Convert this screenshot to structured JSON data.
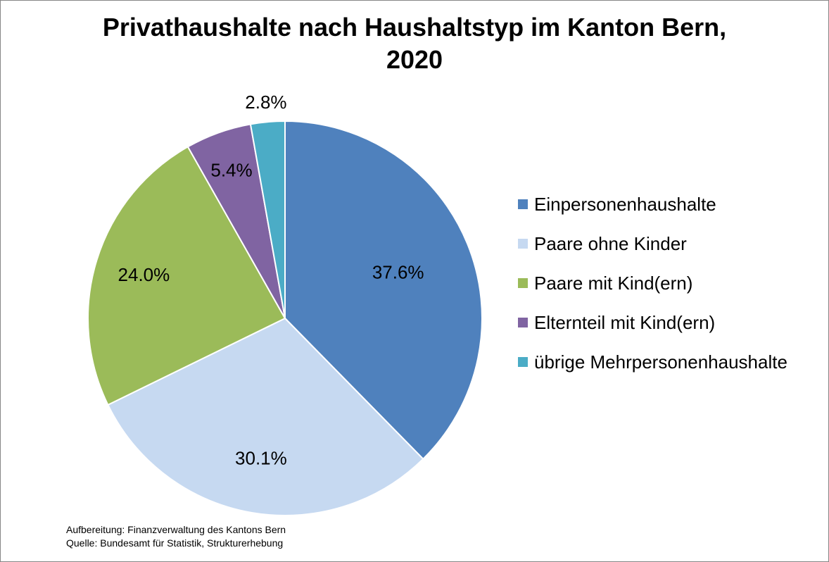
{
  "chart_data": {
    "type": "pie",
    "title": [
      "Privathaushalte nach Haushaltstyp im Kanton Bern,",
      "2020"
    ],
    "slices": [
      {
        "name": "Einpersonenhaushalte",
        "value": 37.6,
        "label": "37.6%",
        "color": "#4F81BD"
      },
      {
        "name": "Paare ohne Kinder",
        "value": 30.1,
        "label": "30.1%",
        "color": "#C6D9F1"
      },
      {
        "name": "Paare mit Kind(ern)",
        "value": 24.0,
        "label": "24.0%",
        "color": "#9BBB59"
      },
      {
        "name": "Elternteil mit Kind(ern)",
        "value": 5.4,
        "label": "5.4%",
        "color": "#8064A2"
      },
      {
        "name": "übrige Mehrpersonenhaushalte",
        "value": 2.8,
        "label": "2.8%",
        "color": "#4BACC6"
      }
    ],
    "legend_position": "right",
    "start_angle": "12 o'clock",
    "direction": "clockwise"
  },
  "notes": {
    "line1": "Aufbereitung: Finanzverwaltung des Kantons Bern",
    "line2": "Quelle: Bundesamt für Statistik, Strukturerhebung"
  }
}
